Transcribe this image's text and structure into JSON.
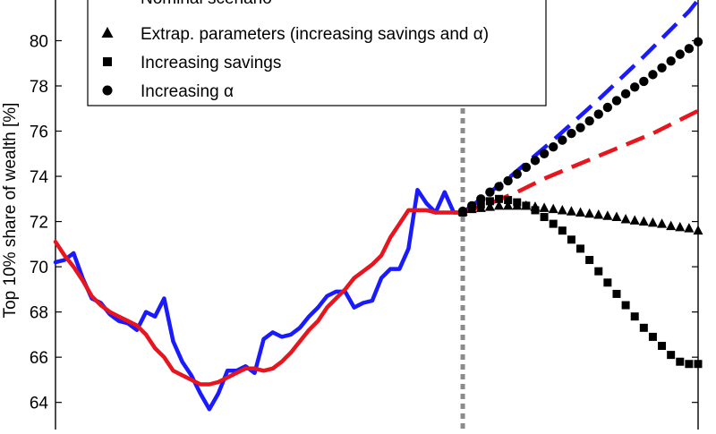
{
  "chart_data": {
    "type": "line",
    "title": "",
    "xlabel": "",
    "ylabel": "Top 10% share of wealth [%]",
    "xlim": [
      0,
      71
    ],
    "ylim": [
      62.8,
      81.8
    ],
    "y_ticks": [
      64,
      66,
      68,
      70,
      72,
      74,
      76,
      78,
      80
    ],
    "grid": false,
    "legend_placement": "top-left",
    "vertical_marker_x": 45,
    "series": [
      {
        "name": "",
        "style": "solid",
        "color": "#1a1aff",
        "x": [
          0,
          1,
          2,
          3,
          4,
          5,
          6,
          7,
          8,
          9,
          10,
          11,
          12,
          13,
          14,
          15,
          16,
          17,
          18,
          19,
          20,
          21,
          22,
          23,
          24,
          25,
          26,
          27,
          28,
          29,
          30,
          31,
          32,
          33,
          34,
          35,
          36,
          37,
          38,
          39,
          40,
          41,
          42,
          43,
          44,
          45
        ],
        "y": [
          70.2,
          70.3,
          70.6,
          69.5,
          68.6,
          68.4,
          67.9,
          67.6,
          67.5,
          67.2,
          68.0,
          67.8,
          68.6,
          66.7,
          65.8,
          65.2,
          64.4,
          63.7,
          64.4,
          65.4,
          65.4,
          65.6,
          65.3,
          66.8,
          67.1,
          66.9,
          67.0,
          67.3,
          67.8,
          68.2,
          68.7,
          68.9,
          68.9,
          68.2,
          68.4,
          68.5,
          69.5,
          69.9,
          69.9,
          70.8,
          73.4,
          72.8,
          72.4,
          73.3,
          72.4,
          72.4
        ]
      },
      {
        "name": "Nominal scenario",
        "style": "solid",
        "color": "#e8141e",
        "x": [
          0,
          1,
          2,
          3,
          4,
          5,
          6,
          7,
          8,
          9,
          10,
          11,
          12,
          13,
          14,
          15,
          16,
          17,
          18,
          19,
          20,
          21,
          22,
          23,
          24,
          25,
          26,
          27,
          28,
          29,
          30,
          31,
          32,
          33,
          34,
          35,
          36,
          37,
          38,
          39,
          40,
          41,
          42,
          43,
          44,
          45
        ],
        "y": [
          71.1,
          70.5,
          70.0,
          69.4,
          68.7,
          68.3,
          68.0,
          67.8,
          67.6,
          67.4,
          67.0,
          66.4,
          66.0,
          65.4,
          65.2,
          65.0,
          64.8,
          64.8,
          64.9,
          65.1,
          65.3,
          65.5,
          65.5,
          65.4,
          65.5,
          65.8,
          66.2,
          66.7,
          67.2,
          67.6,
          68.2,
          68.6,
          69.0,
          69.5,
          69.8,
          70.1,
          70.5,
          71.3,
          71.9,
          72.5,
          72.5,
          72.5,
          72.4,
          72.4,
          72.4,
          72.4
        ]
      },
      {
        "name": "",
        "style": "dashed",
        "color": "#1a1aff",
        "x": [
          45,
          50,
          55,
          60,
          65,
          70,
          71
        ],
        "y": [
          72.4,
          73.9,
          75.6,
          77.4,
          79.3,
          81.3,
          81.8
        ]
      },
      {
        "name": "",
        "style": "dashed",
        "color": "#e8141e",
        "x": [
          45,
          48,
          51,
          54,
          57,
          60,
          63,
          66,
          69,
          71
        ],
        "y": [
          72.4,
          72.8,
          73.3,
          73.9,
          74.4,
          74.9,
          75.4,
          75.9,
          76.5,
          76.9
        ]
      },
      {
        "name": "Extrap. parameters (increasing savings and α)",
        "style": "markers",
        "marker": "triangle",
        "color": "#000000",
        "x": [
          45,
          46,
          47,
          48,
          49,
          50,
          51,
          52,
          53,
          54,
          55,
          56,
          57,
          58,
          59,
          60,
          61,
          62,
          63,
          64,
          65,
          66,
          67,
          68,
          69,
          70,
          71
        ],
        "y": [
          72.45,
          72.55,
          72.6,
          72.65,
          72.7,
          72.7,
          72.7,
          72.7,
          72.65,
          72.6,
          72.55,
          72.5,
          72.45,
          72.4,
          72.35,
          72.3,
          72.25,
          72.2,
          72.1,
          72.05,
          72.0,
          71.95,
          71.9,
          71.8,
          71.75,
          71.7,
          71.6
        ]
      },
      {
        "name": "Increasing savings",
        "style": "markers",
        "marker": "square",
        "color": "#000000",
        "x": [
          45,
          46,
          47,
          48,
          49,
          50,
          51,
          52,
          53,
          54,
          55,
          56,
          57,
          58,
          59,
          60,
          61,
          62,
          63,
          64,
          65,
          66,
          67,
          68,
          69,
          70,
          71
        ],
        "y": [
          72.4,
          72.6,
          72.75,
          72.9,
          73.0,
          72.95,
          72.85,
          72.7,
          72.5,
          72.2,
          71.9,
          71.6,
          71.2,
          70.8,
          70.3,
          69.8,
          69.3,
          68.8,
          68.3,
          67.8,
          67.3,
          66.9,
          66.5,
          66.1,
          65.8,
          65.7,
          65.7
        ]
      },
      {
        "name": "Increasing α",
        "style": "markers",
        "marker": "circle",
        "color": "#000000",
        "x": [
          45,
          46,
          47,
          48,
          49,
          50,
          51,
          52,
          53,
          54,
          55,
          56,
          57,
          58,
          59,
          60,
          61,
          62,
          63,
          64,
          65,
          66,
          67,
          68,
          69,
          70,
          71
        ],
        "y": [
          72.45,
          72.7,
          73.0,
          73.3,
          73.55,
          73.8,
          74.1,
          74.4,
          74.7,
          75.0,
          75.3,
          75.6,
          75.9,
          76.15,
          76.45,
          76.75,
          77.05,
          77.35,
          77.65,
          77.95,
          78.2,
          78.5,
          78.8,
          79.1,
          79.4,
          79.65,
          79.95
        ]
      }
    ]
  }
}
